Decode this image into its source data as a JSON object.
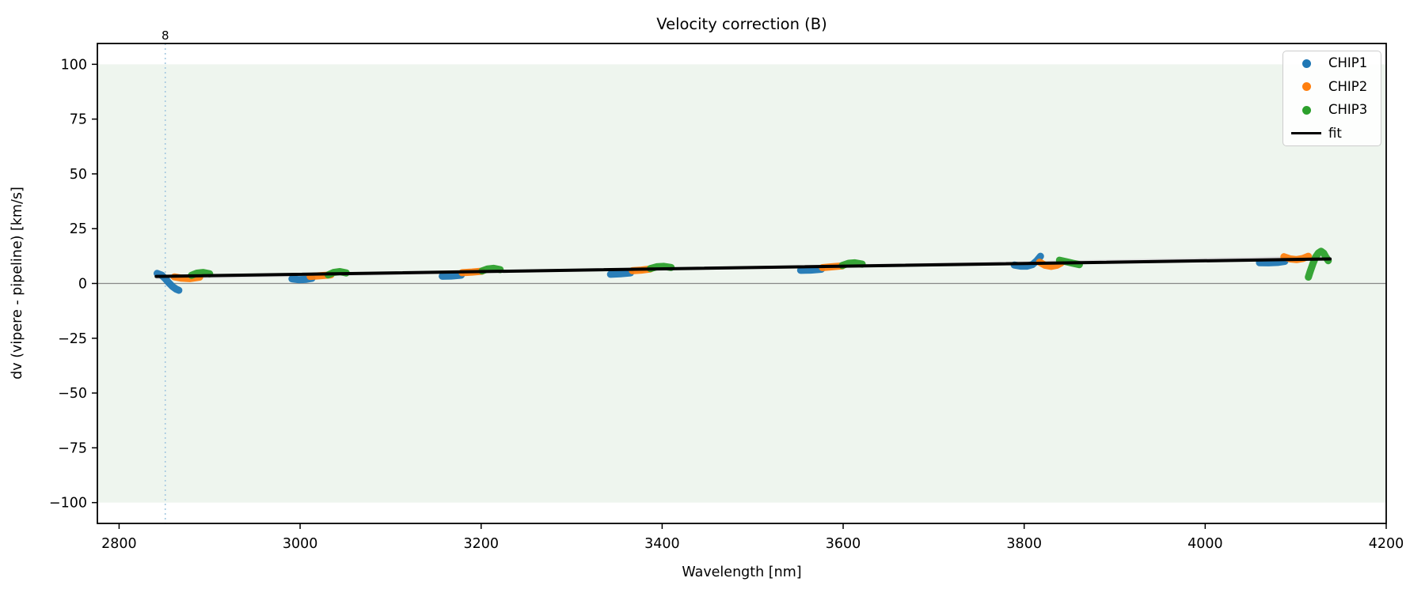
{
  "chart_data": {
    "type": "scatter",
    "title": "Velocity correction (B)",
    "xlabel": "Wavelength [nm]",
    "ylabel": "dv (vipere - pipeline) [km/s]",
    "xlim": [
      2776,
      4200
    ],
    "ylim": [
      -109.5,
      109.5
    ],
    "xticks": [
      2800,
      3000,
      3200,
      3400,
      3600,
      3800,
      4000,
      4200
    ],
    "yticks": [
      -100,
      -75,
      -50,
      -25,
      0,
      25,
      50,
      75,
      100
    ],
    "grid": false,
    "background_band": {
      "ymin": -100,
      "ymax": 100,
      "color": "#eef5ee"
    },
    "zero_line": {
      "y": 0,
      "color": "#888888"
    },
    "vline": {
      "x": 2851,
      "label": "8",
      "line_color": "#a3c8e0",
      "label_color": "#2f7fb8",
      "style": "dotted"
    },
    "series": [
      {
        "name": "CHIP1",
        "color": "#1f77b4",
        "segments": [
          [
            [
              2842,
              4.6
            ],
            [
              2847,
              3.8
            ],
            [
              2851,
              2.2
            ],
            [
              2855,
              0.3
            ],
            [
              2859,
              -1.4
            ],
            [
              2863,
              -2.6
            ],
            [
              2866,
              -3.1
            ]
          ],
          [
            [
              2991,
              2.1
            ],
            [
              2999,
              1.7
            ],
            [
              3007,
              1.9
            ],
            [
              3013,
              2.3
            ]
          ],
          [
            [
              3157,
              3.3
            ],
            [
              3167,
              3.4
            ],
            [
              3178,
              3.8
            ]
          ],
          [
            [
              3343,
              4.2
            ],
            [
              3354,
              4.4
            ],
            [
              3365,
              4.8
            ]
          ],
          [
            [
              3553,
              6.0
            ],
            [
              3564,
              6.1
            ],
            [
              3576,
              6.5
            ]
          ],
          [
            [
              3789,
              8.4
            ],
            [
              3796,
              7.9
            ],
            [
              3803,
              7.9
            ],
            [
              3809,
              8.6
            ],
            [
              3814,
              10.4
            ],
            [
              3818,
              12.4
            ]
          ],
          [
            [
              4060,
              9.5
            ],
            [
              4070,
              9.4
            ],
            [
              4080,
              9.6
            ],
            [
              4088,
              10.1
            ]
          ]
        ]
      },
      {
        "name": "CHIP2",
        "color": "#ff7f0e",
        "segments": [
          [
            [
              2861,
              3.0
            ],
            [
              2869,
              2.4
            ],
            [
              2878,
              2.2
            ],
            [
              2889,
              2.9
            ]
          ],
          [
            [
              3011,
              3.2
            ],
            [
              3022,
              3.5
            ],
            [
              3034,
              3.9
            ]
          ],
          [
            [
              3179,
              4.9
            ],
            [
              3190,
              5.2
            ],
            [
              3201,
              5.6
            ]
          ],
          [
            [
              3367,
              5.8
            ],
            [
              3377,
              6.1
            ],
            [
              3387,
              6.6
            ]
          ],
          [
            [
              3577,
              7.2
            ],
            [
              3588,
              7.6
            ],
            [
              3599,
              8.0
            ]
          ],
          [
            [
              3817,
              9.7
            ],
            [
              3823,
              8.3
            ],
            [
              3830,
              7.8
            ],
            [
              3836,
              8.3
            ],
            [
              3841,
              9.4
            ]
          ],
          [
            [
              4087,
              12.2
            ],
            [
              4094,
              11.2
            ],
            [
              4101,
              10.9
            ],
            [
              4108,
              11.4
            ],
            [
              4114,
              12.4
            ]
          ]
        ]
      },
      {
        "name": "CHIP3",
        "color": "#2ca02c",
        "segments": [
          [
            [
              2880,
              3.7
            ],
            [
              2886,
              4.7
            ],
            [
              2893,
              5.0
            ],
            [
              2900,
              4.4
            ]
          ],
          [
            [
              3031,
              3.9
            ],
            [
              3037,
              5.0
            ],
            [
              3044,
              5.4
            ],
            [
              3051,
              4.8
            ]
          ],
          [
            [
              3201,
              5.7
            ],
            [
              3207,
              6.6
            ],
            [
              3214,
              6.9
            ],
            [
              3221,
              6.3
            ]
          ],
          [
            [
              3387,
              6.8
            ],
            [
              3394,
              7.6
            ],
            [
              3402,
              7.8
            ],
            [
              3410,
              7.3
            ]
          ],
          [
            [
              3599,
              8.2
            ],
            [
              3606,
              9.2
            ],
            [
              3613,
              9.4
            ],
            [
              3621,
              8.8
            ]
          ],
          [
            [
              3839,
              10.6
            ],
            [
              3847,
              9.9
            ],
            [
              3854,
              9.2
            ],
            [
              3861,
              8.6
            ]
          ],
          [
            [
              4114,
              2.9
            ],
            [
              4116,
              5.5
            ],
            [
              4119,
              9.0
            ],
            [
              4122,
              12.0
            ],
            [
              4125,
              13.9
            ],
            [
              4128,
              14.7
            ],
            [
              4131,
              13.8
            ],
            [
              4134,
              11.6
            ],
            [
              4136,
              10.4
            ]
          ]
        ]
      }
    ],
    "fit": {
      "name": "fit",
      "color": "#000000",
      "x": [
        2841,
        4138
      ],
      "y": [
        3.2,
        11.2
      ]
    },
    "fit_shadow": {
      "color": "#dcdcdc",
      "x": [
        2841,
        4138
      ],
      "y": [
        2.4,
        12.2
      ]
    },
    "legend": {
      "position": "upper right",
      "entries": [
        {
          "label": "CHIP1",
          "marker": "dot",
          "color": "#1f77b4"
        },
        {
          "label": "CHIP2",
          "marker": "dot",
          "color": "#ff7f0e"
        },
        {
          "label": "CHIP3",
          "marker": "dot",
          "color": "#2ca02c"
        },
        {
          "label": "fit",
          "marker": "line",
          "color": "#000000"
        }
      ]
    }
  }
}
